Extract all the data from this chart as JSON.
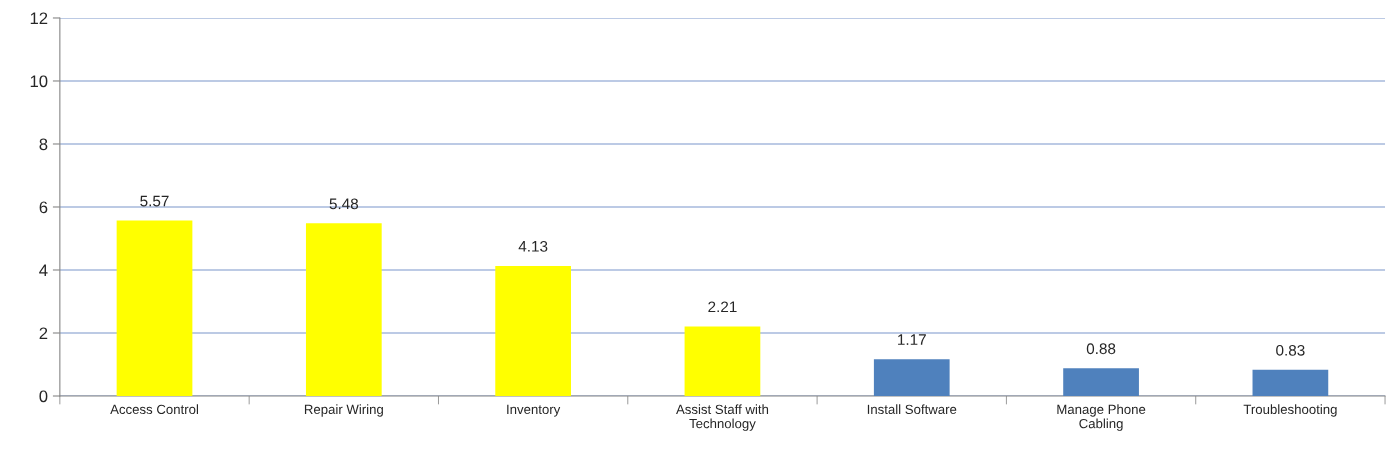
{
  "chart_data": {
    "type": "bar",
    "categories": [
      "Access Control",
      "Repair Wiring",
      "Inventory",
      "Assist Staff with Technology",
      "Install Software",
      "Manage Phone Cabling",
      "Troubleshooting"
    ],
    "values": [
      5.57,
      5.48,
      4.13,
      2.21,
      1.17,
      0.88,
      0.83
    ],
    "colors": [
      "#ffff00",
      "#ffff00",
      "#ffff00",
      "#ffff00",
      "#4f81bd",
      "#4f81bd",
      "#4f81bd"
    ],
    "ylim": [
      0,
      12
    ],
    "yticks": [
      0,
      2,
      4,
      6,
      8,
      10,
      12
    ],
    "grid": "y",
    "data_labels": true,
    "legend": false
  }
}
